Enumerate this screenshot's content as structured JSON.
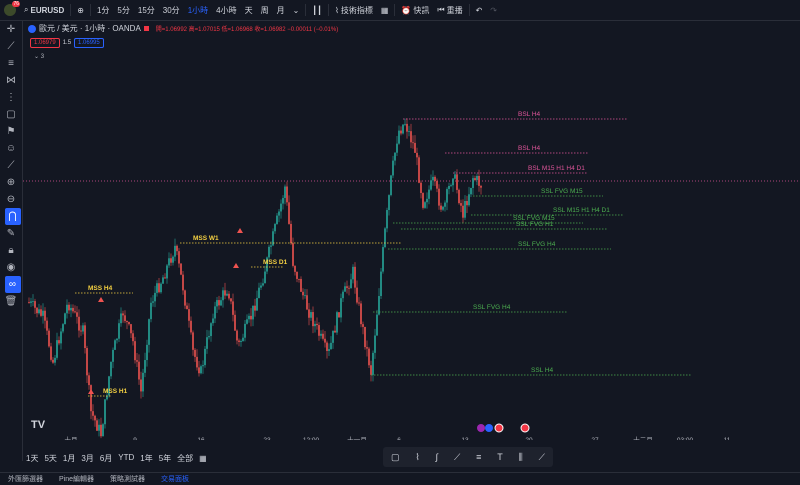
{
  "header": {
    "badge": "76",
    "symbol": "EURUSD",
    "intervals": [
      "1分",
      "5分",
      "15分",
      "30分",
      "1小時",
      "4小時",
      "天",
      "周",
      "月"
    ],
    "active_interval": "1小時",
    "indicators_label": "技術指標",
    "alert_label": "快訊",
    "replay_label": "重播"
  },
  "legend": {
    "title": "歐元 / 美元 · 1小時 · OANDA",
    "open": "開=1.06992",
    "high": "高=1.07015",
    "low": "低=1.06968",
    "close": "收=1.06982",
    "change": "−0.00011 (−0.01%)",
    "bid": "1.06979",
    "spread": "1.5",
    "ask": "1.06995",
    "collapsed_count": "3"
  },
  "chart_data": {
    "type": "candlestick",
    "annotations": [
      {
        "label": "BSL H4",
        "kind": "liquidity-high",
        "color": "#e0569b"
      },
      {
        "label": "BSL H4",
        "kind": "liquidity-high",
        "color": "#e0569b"
      },
      {
        "label": "BSL M15 H1 H4 D1",
        "kind": "liquidity-high",
        "color": "#e0569b"
      },
      {
        "label": "SSL FVG M15",
        "kind": "fvg",
        "color": "#4caf50"
      },
      {
        "label": "SSL M15 H1 H4 D1",
        "kind": "liquidity-low",
        "color": "#4caf50"
      },
      {
        "label": "SSL FVG M15",
        "kind": "fvg",
        "color": "#4caf50"
      },
      {
        "label": "SSL FVG H1",
        "kind": "fvg",
        "color": "#4caf50"
      },
      {
        "label": "SSL FVG H4",
        "kind": "fvg",
        "color": "#4caf50"
      },
      {
        "label": "SSL FVG H4",
        "kind": "fvg",
        "color": "#4caf50"
      },
      {
        "label": "SSL H4",
        "kind": "liquidity-low",
        "color": "#4caf50"
      },
      {
        "label": "MSS W1",
        "kind": "mss",
        "color": "#f5d142"
      },
      {
        "label": "MSS D1",
        "kind": "mss",
        "color": "#f5d142"
      },
      {
        "label": "MSS H4",
        "kind": "mss",
        "color": "#f5d142"
      },
      {
        "label": "MSS H1",
        "kind": "mss",
        "color": "#f5d142"
      }
    ],
    "x_ticks": [
      "十月",
      "9",
      "16",
      "23",
      "12:00",
      "十一月",
      "6",
      "13",
      "20",
      "27",
      "十二月",
      "03:00",
      "11"
    ],
    "bull_color": "#26a69a",
    "bear_color": "#ef5350"
  },
  "bottom": {
    "ranges": [
      "1天",
      "5天",
      "1月",
      "3月",
      "6月",
      "YTD",
      "1年",
      "5年",
      "全部"
    ]
  },
  "panels": [
    "外匯篩選器",
    "Pine編輯器",
    "策略測試器",
    "交易面板"
  ],
  "active_panel": "交易面板",
  "logo": "TV"
}
